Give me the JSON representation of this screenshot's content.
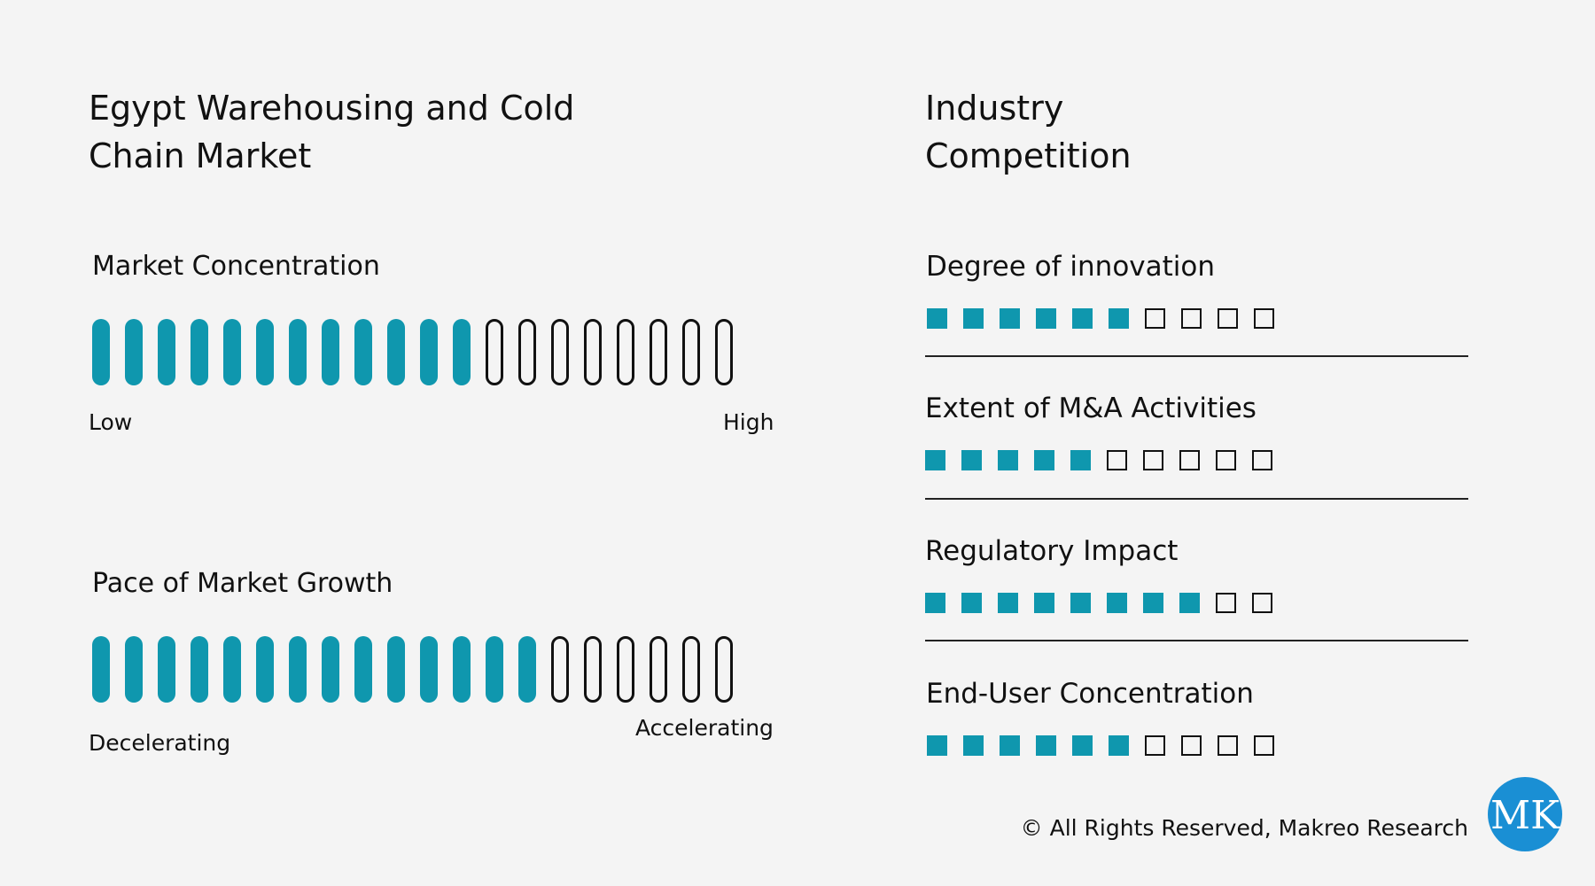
{
  "title": "Egypt Warehousing and Cold Chain Market",
  "competition_title": "Industry Competition",
  "copyright": "© All Rights Reserved, Makreo Research",
  "colors": {
    "filled": "#0f97ae",
    "empty_outline": "#111111",
    "background": "#f4f4f4"
  },
  "chart_data": [
    {
      "type": "gauge",
      "title": "Market Concentration",
      "low_label": "Low",
      "high_label": "High",
      "filled": 12,
      "total": 20
    },
    {
      "type": "gauge",
      "title": "Pace of Market Growth",
      "low_label": "Decelerating",
      "high_label": "Accelerating",
      "filled": 14,
      "total": 20
    },
    {
      "type": "rating",
      "title": "Industry Competition",
      "metrics": [
        {
          "label": "Degree of innovation",
          "filled": 6,
          "total": 10
        },
        {
          "label": "Extent of M&A Activities",
          "filled": 5,
          "total": 10
        },
        {
          "label": "Regulatory Impact",
          "filled": 8,
          "total": 10
        },
        {
          "label": "End-User Concentration",
          "filled": 6,
          "total": 10
        }
      ]
    }
  ],
  "logo": {
    "text": "MK",
    "color": "#1a8fd4",
    "name": "makreo-logo"
  }
}
